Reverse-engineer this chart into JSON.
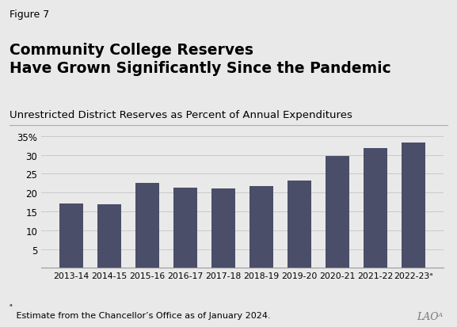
{
  "figure_label": "Figure 7",
  "title_line1": "Community College Reserves",
  "title_line2": "Have Grown Significantly Since the Pandemic",
  "subtitle": "Unrestricted District Reserves as Percent of Annual Expenditures",
  "categories": [
    "2013-14",
    "2014-15",
    "2015-16",
    "2016-17",
    "2017-18",
    "2018-19",
    "2019-20",
    "2020-21",
    "2021-22",
    "2022-23ᵃ"
  ],
  "values": [
    17.2,
    16.8,
    22.5,
    21.2,
    21.1,
    21.8,
    23.2,
    29.8,
    31.8,
    33.2
  ],
  "bar_color": "#4a4e69",
  "background_color": "#e9e9e9",
  "yticks": [
    5,
    10,
    15,
    20,
    25,
    30,
    35
  ],
  "ylim": [
    0,
    36.5
  ],
  "footnote_superscript": "ᵃ",
  "footnote_text": " Estimate from the Chancellor’s Office as of January 2024.",
  "lao_logo": "LAOᴬ",
  "grid_color": "#c8c8c8",
  "title_fontsize": 13.5,
  "subtitle_fontsize": 9.5,
  "figure_label_fontsize": 9,
  "footnote_fontsize": 8,
  "bar_width": 0.62
}
